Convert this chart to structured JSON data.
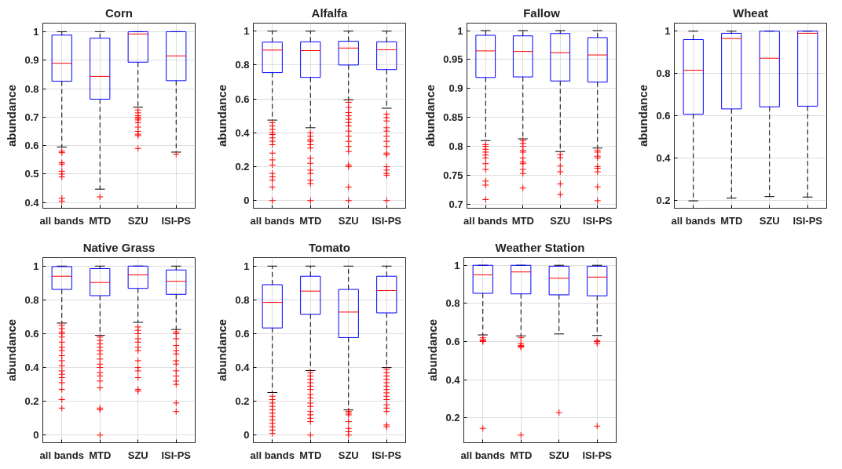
{
  "chart_data": [
    {
      "type": "box",
      "title": "Corn",
      "ylabel": "abundance",
      "categories": [
        "all bands",
        "MTD",
        "SZU",
        "ISI-PS"
      ],
      "ylim": [
        0.38,
        1.03
      ],
      "yticks": [
        0.4,
        0.5,
        0.6,
        0.7,
        0.8,
        0.9,
        1
      ],
      "grid": true,
      "series": [
        {
          "color": "#0000ff",
          "boxes": [
            {
              "low": 0.595,
              "q1": 0.826,
              "median": 0.889,
              "q3": 0.988,
              "high": 1.0,
              "outliers": [
                0.58,
                0.575,
                0.54,
                0.535,
                0.51,
                0.5,
                0.49,
                0.415,
                0.405
              ]
            },
            {
              "low": 0.447,
              "q1": 0.763,
              "median": 0.843,
              "q3": 0.977,
              "high": 1.0,
              "outliers": [
                0.42
              ]
            },
            {
              "low": 0.735,
              "q1": 0.893,
              "median": 0.992,
              "q3": 1.0,
              "high": 1.0,
              "outliers": [
                0.725,
                0.715,
                0.705,
                0.7,
                0.695,
                0.69,
                0.68,
                0.665,
                0.65,
                0.64,
                0.635,
                0.59
              ]
            },
            {
              "low": 0.577,
              "q1": 0.828,
              "median": 0.915,
              "q3": 1.0,
              "high": 1.0,
              "outliers": [
                0.57
              ]
            }
          ]
        }
      ]
    },
    {
      "type": "box",
      "title": "Alfalfa",
      "ylabel": "abundance",
      "categories": [
        "all bands",
        "MTD",
        "SZU",
        "ISI-PS"
      ],
      "ylim": [
        -0.045,
        1.047
      ],
      "yticks": [
        0,
        0.2,
        0.4,
        0.6,
        0.8,
        1
      ],
      "grid": true,
      "series": [
        {
          "color": "#0000ff",
          "boxes": [
            {
              "low": 0.475,
              "q1": 0.755,
              "median": 0.888,
              "q3": 0.935,
              "high": 1.0,
              "outliers": [
                0.46,
                0.44,
                0.42,
                0.4,
                0.39,
                0.37,
                0.35,
                0.33,
                0.28,
                0.24,
                0.21,
                0.16,
                0.14,
                0.12,
                0.08,
                0.0
              ]
            },
            {
              "low": 0.43,
              "q1": 0.727,
              "median": 0.885,
              "q3": 0.937,
              "high": 1.0,
              "outliers": [
                0.4,
                0.38,
                0.36,
                0.35,
                0.33,
                0.31,
                0.25,
                0.22,
                0.18,
                0.16,
                0.12,
                0.1,
                0.0
              ]
            },
            {
              "low": 0.595,
              "q1": 0.8,
              "median": 0.9,
              "q3": 0.94,
              "high": 1.0,
              "outliers": [
                0.58,
                0.55,
                0.52,
                0.5,
                0.48,
                0.46,
                0.44,
                0.41,
                0.38,
                0.35,
                0.32,
                0.29,
                0.21,
                0.2,
                0.08,
                0.0
              ]
            },
            {
              "low": 0.545,
              "q1": 0.773,
              "median": 0.89,
              "q3": 0.937,
              "high": 1.0,
              "outliers": [
                0.51,
                0.49,
                0.47,
                0.43,
                0.41,
                0.38,
                0.35,
                0.32,
                0.28,
                0.27,
                0.2,
                0.18,
                0.16,
                0.15,
                0.0
              ]
            }
          ]
        }
      ]
    },
    {
      "type": "box",
      "title": "Fallow",
      "ylabel": "abundance",
      "categories": [
        "all bands",
        "MTD",
        "SZU",
        "ISI-PS"
      ],
      "ylim": [
        0.693,
        1.013
      ],
      "yticks": [
        0.7,
        0.75,
        0.8,
        0.85,
        0.9,
        0.95,
        1
      ],
      "grid": true,
      "series": [
        {
          "color": "#0000ff",
          "boxes": [
            {
              "low": 0.81,
              "q1": 0.919,
              "median": 0.965,
              "q3": 0.992,
              "high": 1.0,
              "outliers": [
                0.803,
                0.8,
                0.795,
                0.79,
                0.785,
                0.78,
                0.77,
                0.76,
                0.74,
                0.733,
                0.708
              ]
            },
            {
              "low": 0.813,
              "q1": 0.92,
              "median": 0.964,
              "q3": 0.991,
              "high": 1.0,
              "outliers": [
                0.81,
                0.805,
                0.8,
                0.793,
                0.79,
                0.78,
                0.773,
                0.77,
                0.76,
                0.753,
                0.728
              ]
            },
            {
              "low": 0.791,
              "q1": 0.913,
              "median": 0.962,
              "q3": 0.995,
              "high": 1.0,
              "outliers": [
                0.786,
                0.78,
                0.766,
                0.756,
                0.735,
                0.717
              ]
            },
            {
              "low": 0.797,
              "q1": 0.911,
              "median": 0.958,
              "q3": 0.988,
              "high": 1.0,
              "outliers": [
                0.793,
                0.79,
                0.783,
                0.78,
                0.765,
                0.762,
                0.756,
                0.73,
                0.706
              ]
            }
          ]
        }
      ]
    },
    {
      "type": "box",
      "title": "Wheat",
      "ylabel": "abundance",
      "categories": [
        "all bands",
        "MTD",
        "SZU",
        "ISI-PS"
      ],
      "ylim": [
        0.162,
        1.038
      ],
      "yticks": [
        0.2,
        0.4,
        0.6,
        0.8,
        1
      ],
      "grid": true,
      "series": [
        {
          "color": "#0000ff",
          "boxes": [
            {
              "low": 0.197,
              "q1": 0.607,
              "median": 0.815,
              "q3": 0.96,
              "high": 1.0
            },
            {
              "low": 0.21,
              "q1": 0.632,
              "median": 0.965,
              "q3": 0.99,
              "high": 1.0
            },
            {
              "low": 0.217,
              "q1": 0.642,
              "median": 0.872,
              "q3": 1.0,
              "high": 1.0
            },
            {
              "low": 0.215,
              "q1": 0.645,
              "median": 0.99,
              "q3": 1.0,
              "high": 1.0
            }
          ]
        }
      ]
    },
    {
      "type": "box",
      "title": "Native Grass",
      "ylabel": "abundance",
      "categories": [
        "all bands",
        "MTD",
        "SZU",
        "ISI-PS"
      ],
      "ylim": [
        -0.045,
        1.05
      ],
      "yticks": [
        0,
        0.2,
        0.4,
        0.6,
        0.8,
        1
      ],
      "grid": true,
      "series": [
        {
          "color": "#0000ff",
          "boxes": [
            {
              "low": 0.663,
              "q1": 0.862,
              "median": 0.94,
              "q3": 0.997,
              "high": 1.0,
              "outliers": [
                0.65,
                0.63,
                0.61,
                0.6,
                0.58,
                0.55,
                0.52,
                0.5,
                0.47,
                0.44,
                0.41,
                0.38,
                0.36,
                0.34,
                0.31,
                0.27,
                0.21,
                0.16
              ]
            },
            {
              "low": 0.59,
              "q1": 0.825,
              "median": 0.903,
              "q3": 0.985,
              "high": 1.0,
              "outliers": [
                0.58,
                0.56,
                0.54,
                0.52,
                0.5,
                0.48,
                0.45,
                0.42,
                0.4,
                0.37,
                0.35,
                0.32,
                0.28,
                0.16,
                0.15,
                0.0
              ]
            },
            {
              "low": 0.667,
              "q1": 0.868,
              "median": 0.948,
              "q3": 1.0,
              "high": 1.0,
              "outliers": [
                0.64,
                0.62,
                0.6,
                0.57,
                0.55,
                0.52,
                0.5,
                0.44,
                0.4,
                0.38,
                0.34,
                0.27,
                0.26
              ]
            },
            {
              "low": 0.625,
              "q1": 0.833,
              "median": 0.91,
              "q3": 0.977,
              "high": 1.0,
              "outliers": [
                0.61,
                0.6,
                0.57,
                0.53,
                0.5,
                0.48,
                0.44,
                0.42,
                0.38,
                0.35,
                0.32,
                0.3,
                0.19,
                0.14
              ]
            }
          ]
        }
      ]
    },
    {
      "type": "box",
      "title": "Tomato",
      "ylabel": "abundance",
      "categories": [
        "all bands",
        "MTD",
        "SZU",
        "ISI-PS"
      ],
      "ylim": [
        -0.045,
        1.05
      ],
      "yticks": [
        0,
        0.2,
        0.4,
        0.6,
        0.8,
        1
      ],
      "grid": true,
      "series": [
        {
          "color": "#0000ff",
          "boxes": [
            {
              "low": 0.252,
              "q1": 0.634,
              "median": 0.785,
              "q3": 0.89,
              "high": 1.0,
              "outliers": [
                0.23,
                0.21,
                0.19,
                0.17,
                0.15,
                0.13,
                0.11,
                0.09,
                0.07,
                0.05,
                0.03,
                0.01
              ]
            },
            {
              "low": 0.382,
              "q1": 0.715,
              "median": 0.852,
              "q3": 0.94,
              "high": 1.0,
              "outliers": [
                0.37,
                0.35,
                0.33,
                0.31,
                0.29,
                0.27,
                0.24,
                0.22,
                0.19,
                0.17,
                0.14,
                0.12,
                0.1,
                0.08,
                0.0
              ]
            },
            {
              "low": 0.149,
              "q1": 0.577,
              "median": 0.728,
              "q3": 0.862,
              "high": 1.0,
              "outliers": [
                0.14,
                0.13,
                0.12,
                0.08,
                0.04,
                0.02,
                0.0
              ]
            },
            {
              "low": 0.4,
              "q1": 0.723,
              "median": 0.855,
              "q3": 0.94,
              "high": 1.0,
              "outliers": [
                0.39,
                0.37,
                0.35,
                0.33,
                0.31,
                0.29,
                0.27,
                0.25,
                0.23,
                0.21,
                0.18,
                0.16,
                0.14,
                0.06,
                0.05
              ]
            }
          ]
        }
      ]
    },
    {
      "type": "box",
      "title": "Weather Station",
      "ylabel": "abundance",
      "categories": [
        "all bands",
        "MTD",
        "SZU",
        "ISI-PS"
      ],
      "ylim": [
        0.07,
        1.04
      ],
      "yticks": [
        0.2,
        0.4,
        0.6,
        0.8,
        1
      ],
      "grid": true,
      "series": [
        {
          "color": "#0000ff",
          "boxes": [
            {
              "low": 0.635,
              "q1": 0.853,
              "median": 0.95,
              "q3": 1.0,
              "high": 1.0,
              "outliers": [
                0.62,
                0.61,
                0.605,
                0.6,
                0.145
              ]
            },
            {
              "low": 0.63,
              "q1": 0.85,
              "median": 0.965,
              "q3": 1.0,
              "high": 1.0,
              "outliers": [
                0.62,
                0.59,
                0.58,
                0.575,
                0.57,
                0.11
              ]
            },
            {
              "low": 0.64,
              "q1": 0.845,
              "median": 0.932,
              "q3": 0.995,
              "high": 1.0,
              "outliers": [
                0.228
              ]
            },
            {
              "low": 0.632,
              "q1": 0.84,
              "median": 0.938,
              "q3": 0.995,
              "high": 1.0,
              "outliers": [
                0.605,
                0.6,
                0.59,
                0.157
              ]
            }
          ]
        }
      ]
    }
  ]
}
